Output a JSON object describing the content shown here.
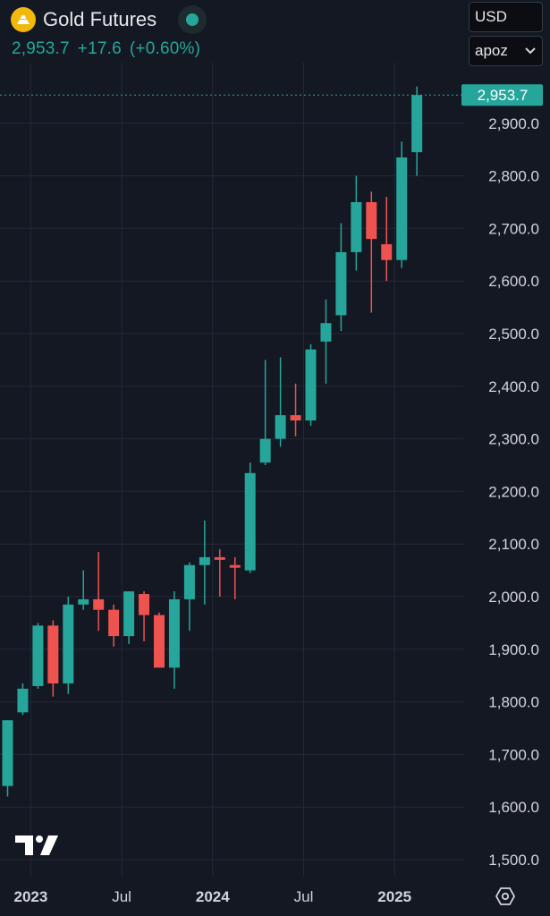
{
  "header": {
    "title": "Gold Futures",
    "price": "2,953.7",
    "change": "+17.6",
    "change_pct": "(+0.60%)"
  },
  "controls": {
    "currency": "USD",
    "unit": "apoz"
  },
  "price_label": "2,953.7",
  "icons": {
    "logo": "gold-bars-icon",
    "live": "live-dot-icon",
    "brand": "tradingview-logo-icon",
    "settings": "settings-hexagon-icon"
  },
  "colors": {
    "up": "#26a69a",
    "down": "#ef5350",
    "background": "#141823",
    "grid": "#242936",
    "axis_text": "#d1d4dc"
  },
  "chart_data": {
    "type": "candlestick",
    "interval": "monthly",
    "y_range": [
      1470,
      3090
    ],
    "y_ticks": [
      "1,500.0",
      "1,600.0",
      "1,700.0",
      "1,800.0",
      "1,900.0",
      "2,000.0",
      "2,100.0",
      "2,200.0",
      "2,300.0",
      "2,400.0",
      "2,500.0",
      "2,600.0",
      "2,700.0",
      "2,800.0",
      "2,900.0"
    ],
    "y_tick_values": [
      1500,
      1600,
      1700,
      1800,
      1900,
      2000,
      2100,
      2200,
      2300,
      2400,
      2500,
      2600,
      2700,
      2800,
      2900
    ],
    "x_labels": [
      {
        "label": "2023",
        "index": 2
      },
      {
        "label": "Jul",
        "index": 8
      },
      {
        "label": "2024",
        "index": 14
      },
      {
        "label": "Jul",
        "index": 20
      },
      {
        "label": "2025",
        "index": 26
      }
    ],
    "last_price": 2953.7,
    "candles": [
      {
        "m": "Nov 2022",
        "o": 1640,
        "h": 1765,
        "l": 1620,
        "c": 1765
      },
      {
        "m": "Dec 2022",
        "o": 1780,
        "h": 1835,
        "l": 1775,
        "c": 1825
      },
      {
        "m": "Jan 2023",
        "o": 1830,
        "h": 1950,
        "l": 1825,
        "c": 1945
      },
      {
        "m": "Feb 2023",
        "o": 1945,
        "h": 1955,
        "l": 1810,
        "c": 1835
      },
      {
        "m": "Mar 2023",
        "o": 1835,
        "h": 2000,
        "l": 1815,
        "c": 1985
      },
      {
        "m": "Apr 2023",
        "o": 1985,
        "h": 2050,
        "l": 1975,
        "c": 1995
      },
      {
        "m": "May 2023",
        "o": 1995,
        "h": 2085,
        "l": 1935,
        "c": 1975
      },
      {
        "m": "Jun 2023",
        "o": 1975,
        "h": 1985,
        "l": 1905,
        "c": 1925
      },
      {
        "m": "Jul 2023",
        "o": 1925,
        "h": 2010,
        "l": 1910,
        "c": 2010
      },
      {
        "m": "Aug 2023",
        "o": 2005,
        "h": 2010,
        "l": 1915,
        "c": 1965
      },
      {
        "m": "Sep 2023",
        "o": 1965,
        "h": 1970,
        "l": 1865,
        "c": 1865
      },
      {
        "m": "Oct 2023",
        "o": 1865,
        "h": 2010,
        "l": 1825,
        "c": 1995
      },
      {
        "m": "Nov 2023",
        "o": 1995,
        "h": 2065,
        "l": 1935,
        "c": 2060
      },
      {
        "m": "Dec 2023",
        "o": 2060,
        "h": 2145,
        "l": 1985,
        "c": 2075
      },
      {
        "m": "Jan 2024",
        "o": 2075,
        "h": 2090,
        "l": 2000,
        "c": 2070
      },
      {
        "m": "Feb 2024",
        "o": 2060,
        "h": 2075,
        "l": 1995,
        "c": 2055
      },
      {
        "m": "Mar 2024",
        "o": 2050,
        "h": 2255,
        "l": 2045,
        "c": 2235
      },
      {
        "m": "Apr 2024",
        "o": 2255,
        "h": 2450,
        "l": 2250,
        "c": 2300
      },
      {
        "m": "May 2024",
        "o": 2300,
        "h": 2455,
        "l": 2285,
        "c": 2345
      },
      {
        "m": "Jun 2024",
        "o": 2345,
        "h": 2405,
        "l": 2305,
        "c": 2335
      },
      {
        "m": "Jul 2024",
        "o": 2335,
        "h": 2480,
        "l": 2325,
        "c": 2470
      },
      {
        "m": "Aug 2024",
        "o": 2485,
        "h": 2565,
        "l": 2405,
        "c": 2520
      },
      {
        "m": "Sep 2024",
        "o": 2535,
        "h": 2710,
        "l": 2505,
        "c": 2655
      },
      {
        "m": "Oct 2024",
        "o": 2655,
        "h": 2800,
        "l": 2620,
        "c": 2750
      },
      {
        "m": "Nov 2024",
        "o": 2750,
        "h": 2770,
        "l": 2540,
        "c": 2680
      },
      {
        "m": "Dec 2024",
        "o": 2670,
        "h": 2760,
        "l": 2600,
        "c": 2640
      },
      {
        "m": "Jan 2025",
        "o": 2640,
        "h": 2865,
        "l": 2625,
        "c": 2835
      },
      {
        "m": "Feb 2025",
        "o": 2845,
        "h": 2970,
        "l": 2800,
        "c": 2953.7
      }
    ]
  }
}
